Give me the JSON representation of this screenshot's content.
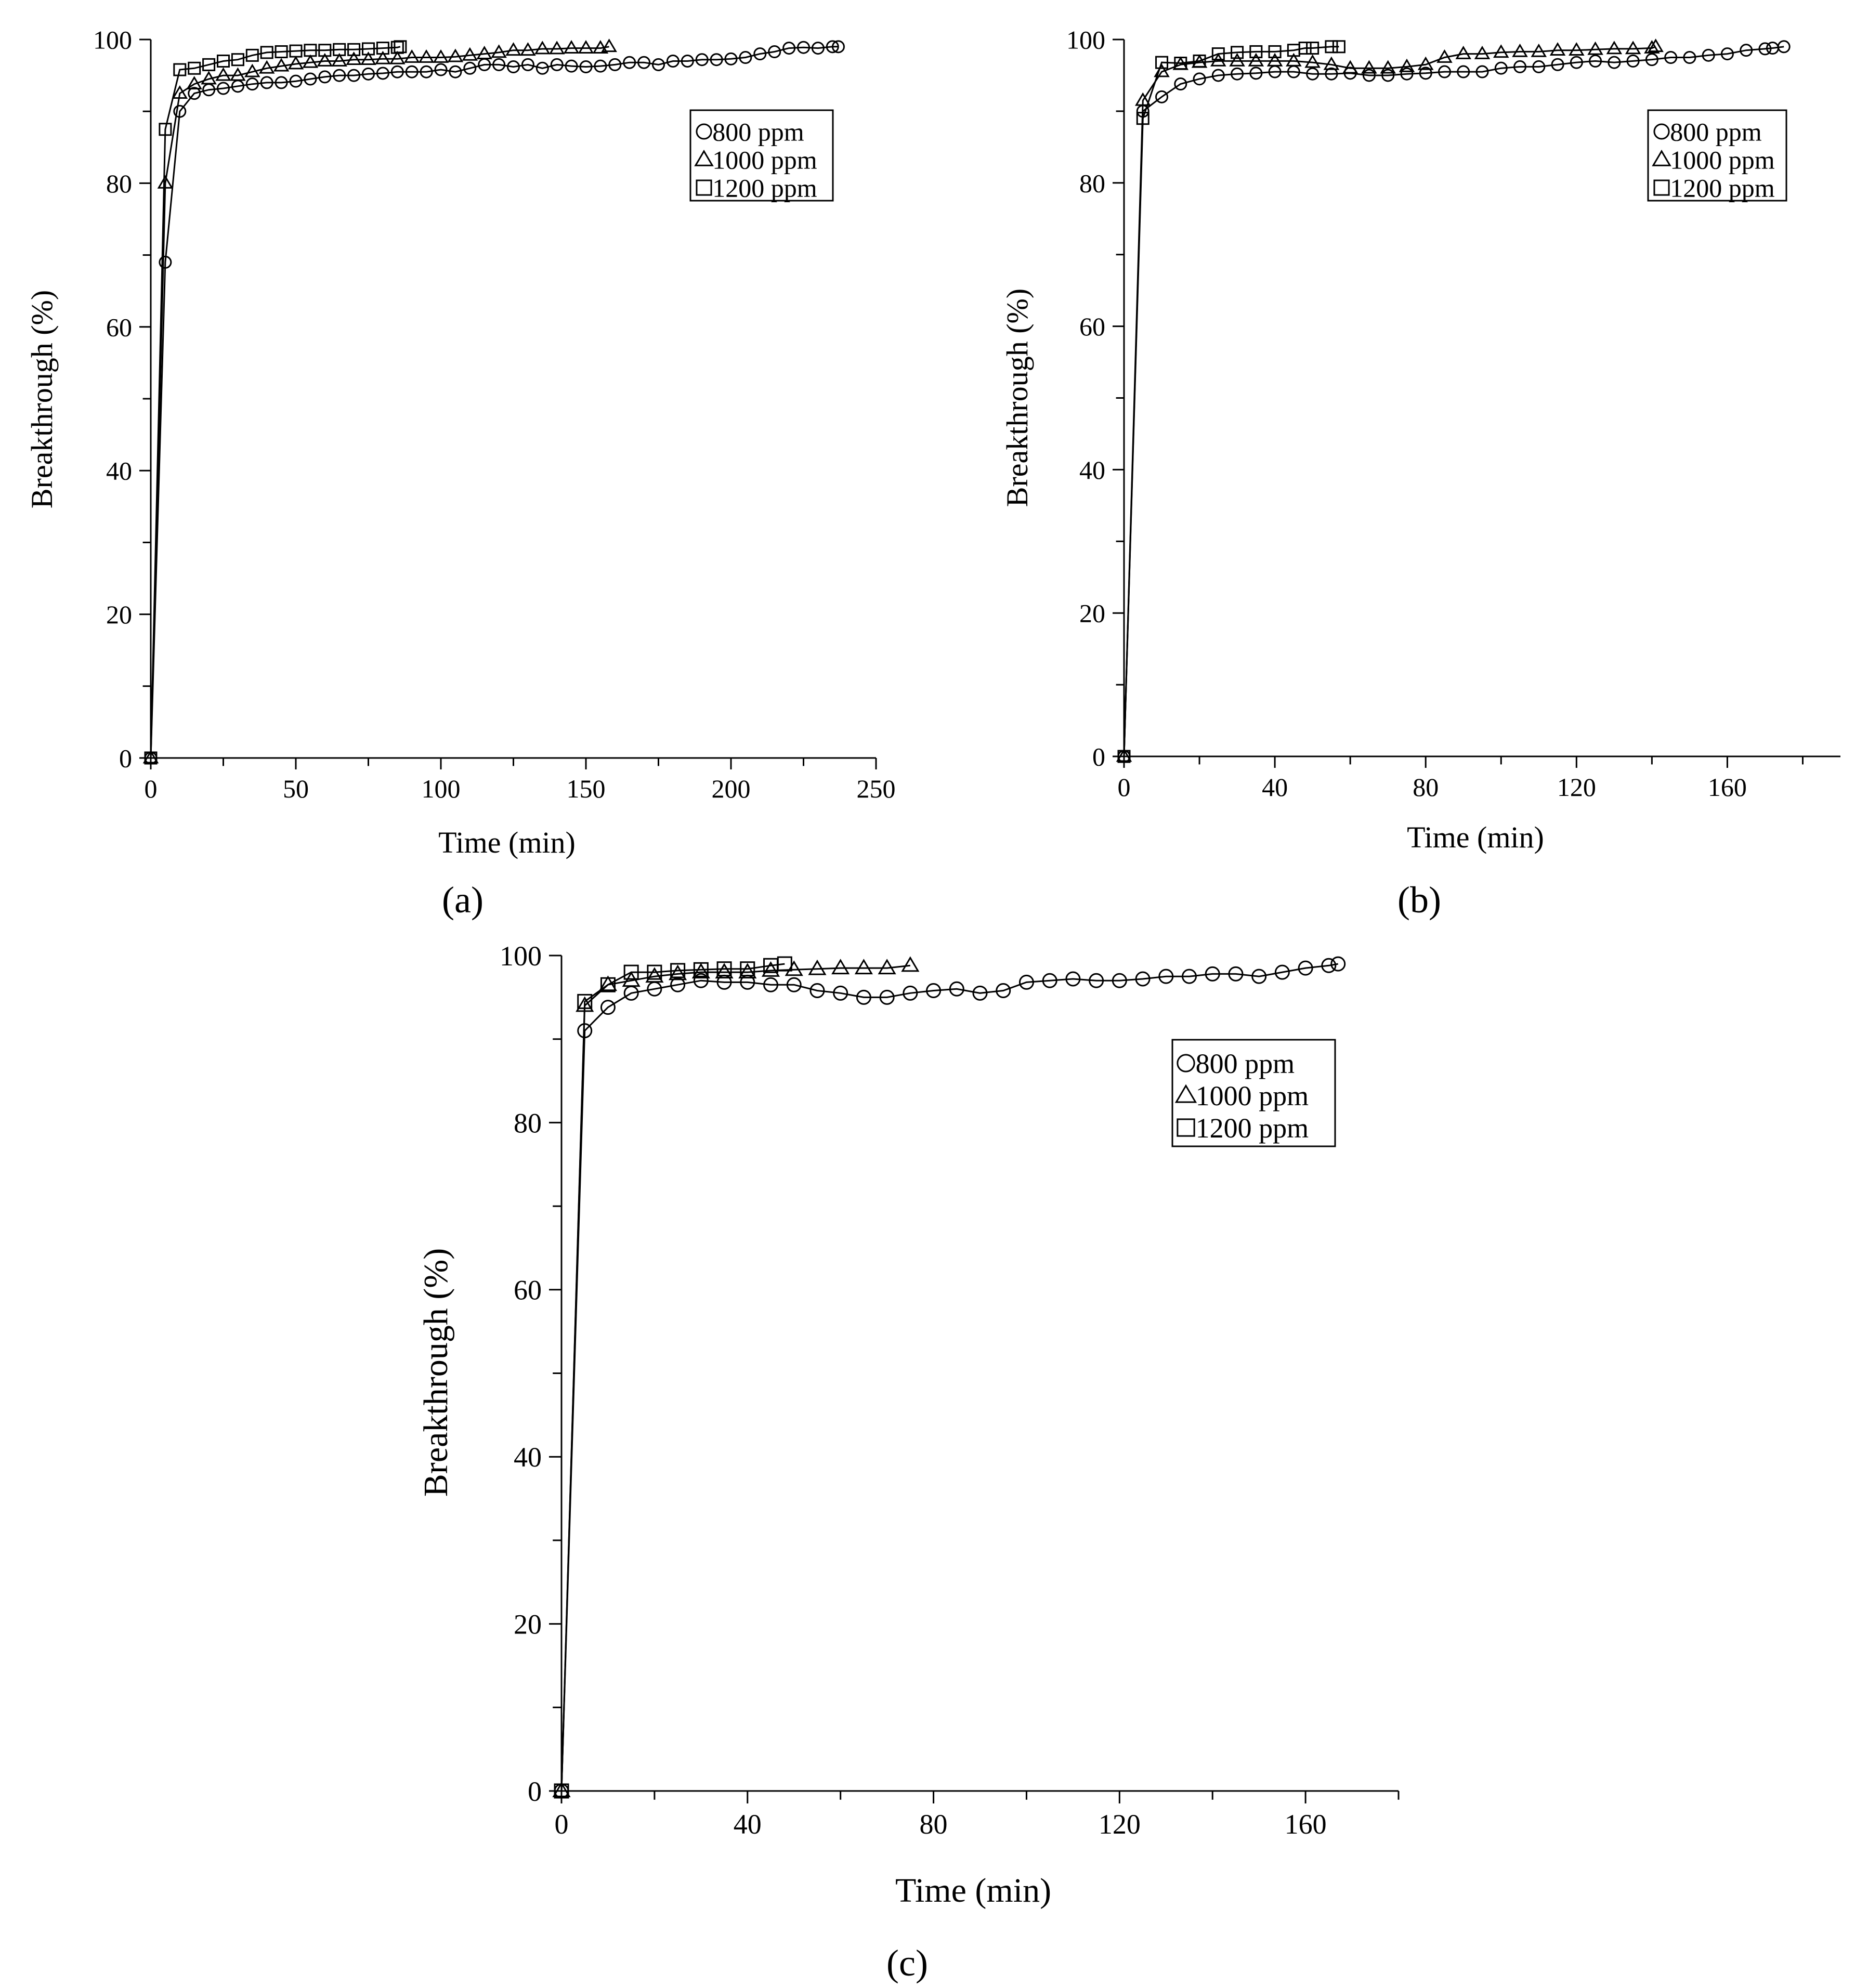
{
  "panels": [
    {
      "id": "a",
      "caption": "(a)"
    },
    {
      "id": "b",
      "caption": "(b)"
    },
    {
      "id": "c",
      "caption": "(c)"
    }
  ],
  "chart_data": [
    {
      "type": "line",
      "panel": "a",
      "title": "",
      "xlabel": "Time (min)",
      "ylabel": "Breakthrough (%)",
      "xlim": [
        0,
        250
      ],
      "ylim": [
        0,
        100
      ],
      "xticks": [
        0,
        50,
        100,
        150,
        200,
        250
      ],
      "yticks": [
        0,
        20,
        40,
        60,
        80,
        100
      ],
      "legend_position": "top-right",
      "series": [
        {
          "name": "800 ppm",
          "marker": "circle",
          "x": [
            0,
            5,
            10,
            15,
            20,
            25,
            30,
            35,
            40,
            45,
            50,
            55,
            60,
            65,
            70,
            75,
            80,
            85,
            90,
            95,
            100,
            105,
            110,
            115,
            120,
            125,
            130,
            135,
            140,
            145,
            150,
            155,
            160,
            165,
            170,
            175,
            180,
            185,
            190,
            195,
            200,
            205,
            210,
            215,
            220,
            225,
            230,
            235,
            237
          ],
          "y": [
            0,
            69,
            90,
            92.5,
            93,
            93.2,
            93.5,
            93.8,
            94,
            94,
            94.2,
            94.5,
            94.8,
            95,
            95,
            95.2,
            95.3,
            95.5,
            95.5,
            95.5,
            95.8,
            95.5,
            96,
            96.5,
            96.5,
            96.2,
            96.5,
            96,
            96.5,
            96.3,
            96.2,
            96.3,
            96.5,
            96.8,
            96.8,
            96.5,
            97,
            97,
            97.2,
            97.2,
            97.3,
            97.5,
            98,
            98.3,
            98.8,
            98.9,
            98.8,
            99,
            99
          ]
        },
        {
          "name": "1000 ppm",
          "marker": "triangle",
          "x": [
            0,
            5,
            10,
            15,
            20,
            25,
            30,
            35,
            40,
            45,
            50,
            55,
            60,
            65,
            70,
            75,
            80,
            85,
            90,
            95,
            100,
            105,
            110,
            115,
            120,
            125,
            130,
            135,
            140,
            145,
            150,
            155,
            158
          ],
          "y": [
            0,
            80,
            92.5,
            93.8,
            94.5,
            95,
            95,
            95.5,
            96,
            96.3,
            96.6,
            96.8,
            97,
            97,
            97.2,
            97.2,
            97.3,
            97.3,
            97.5,
            97.5,
            97.5,
            97.6,
            97.8,
            98,
            98.2,
            98.5,
            98.5,
            98.7,
            98.7,
            98.8,
            98.8,
            98.8,
            99
          ]
        },
        {
          "name": "1200 ppm",
          "marker": "square",
          "x": [
            0,
            5,
            10,
            15,
            20,
            25,
            30,
            35,
            40,
            45,
            50,
            55,
            60,
            65,
            70,
            75,
            80,
            85,
            86
          ],
          "y": [
            0,
            87.5,
            95.8,
            96,
            96.5,
            97,
            97.2,
            97.8,
            98.2,
            98.3,
            98.4,
            98.5,
            98.5,
            98.6,
            98.6,
            98.7,
            98.8,
            98.9,
            99
          ]
        }
      ]
    },
    {
      "type": "line",
      "panel": "b",
      "title": "",
      "xlabel": "Time (min)",
      "ylabel": "Breakthrough (%)",
      "xlim": [
        0,
        190
      ],
      "ylim": [
        0,
        100
      ],
      "xticks": [
        0,
        40,
        80,
        120,
        160
      ],
      "yticks": [
        0,
        20,
        40,
        60,
        80,
        100
      ],
      "legend_position": "top-right",
      "series": [
        {
          "name": "800 ppm",
          "marker": "circle",
          "x": [
            0,
            5,
            10,
            15,
            20,
            25,
            30,
            35,
            40,
            45,
            50,
            55,
            60,
            65,
            70,
            75,
            80,
            85,
            90,
            95,
            100,
            105,
            110,
            115,
            120,
            125,
            130,
            135,
            140,
            145,
            150,
            155,
            160,
            165,
            170,
            172,
            175
          ],
          "y": [
            0,
            90,
            92,
            93.8,
            94.5,
            95,
            95.2,
            95.3,
            95.5,
            95.5,
            95.2,
            95.2,
            95.3,
            95,
            95,
            95.2,
            95.3,
            95.5,
            95.5,
            95.5,
            96,
            96.2,
            96.2,
            96.5,
            96.8,
            97,
            96.8,
            97,
            97.2,
            97.5,
            97.5,
            97.8,
            98,
            98.5,
            98.7,
            98.8,
            99
          ]
        },
        {
          "name": "1000 ppm",
          "marker": "triangle",
          "x": [
            0,
            5,
            10,
            15,
            20,
            25,
            30,
            35,
            40,
            45,
            50,
            55,
            60,
            65,
            70,
            75,
            80,
            85,
            90,
            95,
            100,
            105,
            110,
            115,
            120,
            125,
            130,
            135,
            140,
            141
          ],
          "y": [
            0,
            91.5,
            95.5,
            96.5,
            96.8,
            97,
            97,
            97,
            97,
            97,
            96.8,
            96.5,
            96,
            96,
            96,
            96.2,
            96.5,
            97.5,
            98,
            98,
            98.2,
            98.3,
            98.3,
            98.5,
            98.5,
            98.6,
            98.7,
            98.7,
            98.8,
            99
          ]
        },
        {
          "name": "1200 ppm",
          "marker": "square",
          "x": [
            0,
            5,
            10,
            15,
            20,
            25,
            30,
            35,
            40,
            45,
            48,
            50,
            55,
            57
          ],
          "y": [
            0,
            89,
            96.8,
            96.7,
            97,
            98,
            98.2,
            98.3,
            98.3,
            98.5,
            98.8,
            98.8,
            99,
            99
          ]
        }
      ]
    },
    {
      "type": "line",
      "panel": "c",
      "title": "",
      "xlabel": "Time (min)",
      "ylabel": "Breakthrough (%)",
      "xlim": [
        0,
        180
      ],
      "ylim": [
        0,
        100
      ],
      "xticks": [
        0,
        40,
        80,
        120,
        160
      ],
      "yticks": [
        0,
        20,
        40,
        60,
        80,
        100
      ],
      "legend_position": "top-right",
      "series": [
        {
          "name": "800 ppm",
          "marker": "circle",
          "x": [
            0,
            5,
            10,
            15,
            20,
            25,
            30,
            35,
            40,
            45,
            50,
            55,
            60,
            65,
            70,
            75,
            80,
            85,
            90,
            95,
            100,
            105,
            110,
            115,
            120,
            125,
            130,
            135,
            140,
            145,
            150,
            155,
            160,
            165,
            167
          ],
          "y": [
            0,
            91,
            93.8,
            95.5,
            96,
            96.5,
            97,
            96.8,
            96.8,
            96.5,
            96.5,
            95.8,
            95.5,
            95,
            95,
            95.5,
            95.8,
            96,
            95.5,
            95.8,
            96.8,
            97,
            97.2,
            97,
            97,
            97.2,
            97.5,
            97.5,
            97.8,
            97.8,
            97.5,
            98,
            98.5,
            98.8,
            99
          ]
        },
        {
          "name": "1000 ppm",
          "marker": "triangle",
          "x": [
            0,
            5,
            10,
            15,
            20,
            25,
            30,
            35,
            40,
            45,
            50,
            55,
            60,
            65,
            70,
            75
          ],
          "y": [
            0,
            94,
            96.5,
            97,
            97.5,
            97.8,
            98,
            98,
            98,
            98.2,
            98.3,
            98.4,
            98.5,
            98.5,
            98.5,
            98.8
          ]
        },
        {
          "name": "1200 ppm",
          "marker": "square",
          "x": [
            0,
            5,
            10,
            15,
            20,
            25,
            30,
            35,
            40,
            45,
            48
          ],
          "y": [
            0,
            94.5,
            96.5,
            98,
            98,
            98.2,
            98.3,
            98.4,
            98.4,
            98.8,
            99
          ]
        }
      ]
    }
  ]
}
